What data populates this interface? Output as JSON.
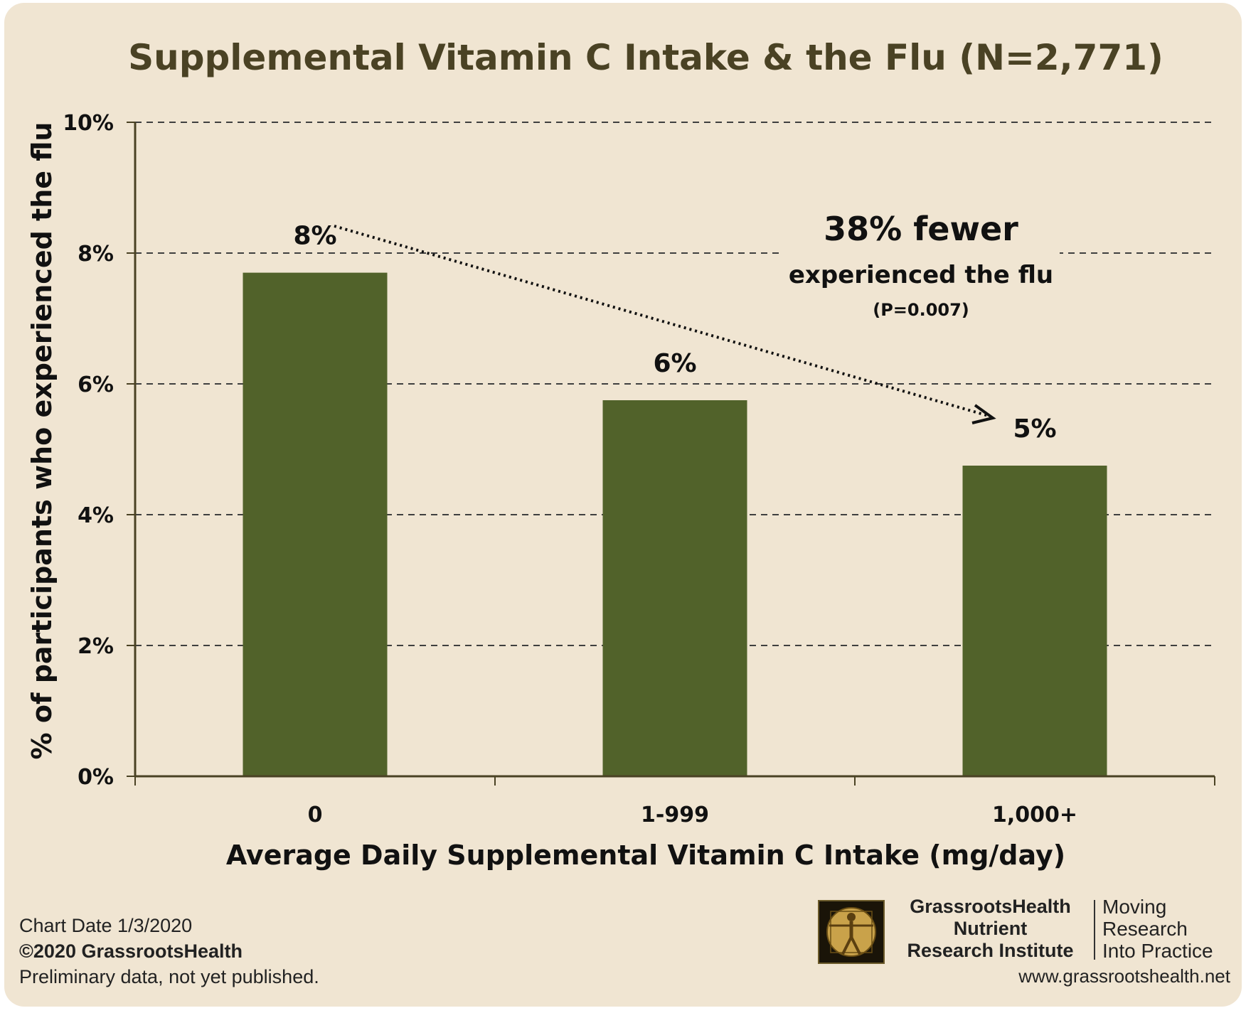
{
  "chart_data": {
    "type": "bar",
    "title": "Supplemental Vitamin C Intake & the Flu (N=2,771)",
    "xlabel": "Average Daily Supplemental Vitamin C Intake (mg/day)",
    "ylabel": "% of participants who experienced the flu",
    "categories": [
      "0",
      "1-999",
      "1,000+"
    ],
    "values": [
      7.7,
      5.75,
      4.75
    ],
    "data_labels": [
      "8%",
      "6%",
      "5%"
    ],
    "ylim": [
      0,
      10
    ],
    "yticks": [
      0,
      2,
      4,
      6,
      8,
      10
    ],
    "ytick_labels": [
      "0%",
      "2%",
      "4%",
      "6%",
      "8%",
      "10%"
    ],
    "grid": "horizontal dashed",
    "bar_color": "#51622a",
    "annotation": {
      "headline": "38% fewer",
      "subline": "experienced the flu",
      "pvalue": "(P=0.007)",
      "arrow": "dotted, from first bar label to last bar label"
    }
  },
  "footer": {
    "chart_date": "Chart Date 1/3/2020",
    "copyright": "©2020 GrassrootsHealth",
    "note": "Preliminary data, not yet published."
  },
  "brand": {
    "name_line1": "GrassrootsHealth",
    "name_line2": "Nutrient",
    "name_line3": "Research Institute",
    "tagline1": "Moving",
    "tagline2": "Research",
    "tagline3": "Into Practice",
    "url": "www.grassrootshealth.net",
    "logo_icon": "vitruvian-man-icon"
  }
}
